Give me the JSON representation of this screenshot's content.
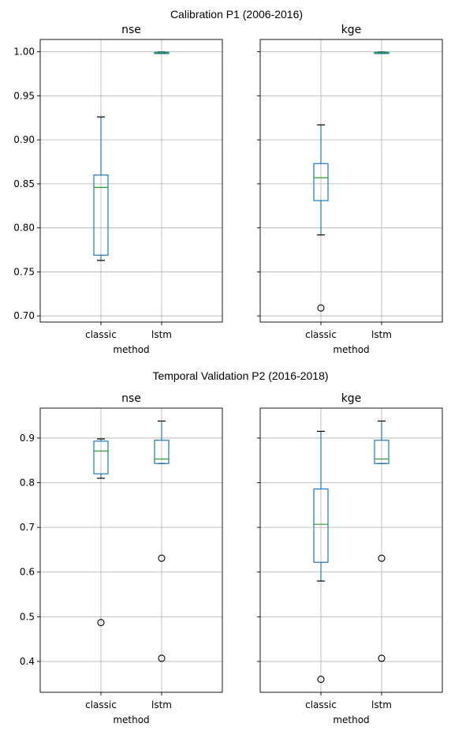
{
  "chart_data": [
    {
      "type": "box",
      "title": "Calibration P1 (2006-2016)",
      "panels": [
        {
          "title": "nse",
          "xlabel": "method",
          "categories": [
            "classic",
            "lstm"
          ],
          "ylim": [
            0.693,
            1.014
          ],
          "yticks": [
            0.7,
            0.75,
            0.8,
            0.85,
            0.9,
            0.95,
            1.0
          ],
          "ytick_labels": [
            "0.70",
            "0.75",
            "0.80",
            "0.85",
            "0.90",
            "0.95",
            "1.00"
          ],
          "show_ytick_labels": true,
          "boxes": [
            {
              "category": "classic",
              "whisker_low": 0.763,
              "q1": 0.769,
              "median": 0.846,
              "q3": 0.86,
              "whisker_high": 0.926,
              "outliers": []
            },
            {
              "category": "lstm",
              "whisker_low": 0.998,
              "q1": 0.998,
              "median": 0.999,
              "q3": 0.9995,
              "whisker_high": 0.9998,
              "outliers": []
            }
          ]
        },
        {
          "title": "kge",
          "xlabel": "method",
          "categories": [
            "classic",
            "lstm"
          ],
          "ylim": [
            0.693,
            1.014
          ],
          "yticks": [
            0.7,
            0.75,
            0.8,
            0.85,
            0.9,
            0.95,
            1.0
          ],
          "ytick_labels": [
            "0.70",
            "0.75",
            "0.80",
            "0.85",
            "0.90",
            "0.95",
            "1.00"
          ],
          "show_ytick_labels": false,
          "boxes": [
            {
              "category": "classic",
              "whisker_low": 0.792,
              "q1": 0.831,
              "median": 0.857,
              "q3": 0.873,
              "whisker_high": 0.917,
              "outliers": [
                0.709
              ]
            },
            {
              "category": "lstm",
              "whisker_low": 0.998,
              "q1": 0.998,
              "median": 0.999,
              "q3": 0.9995,
              "whisker_high": 0.9998,
              "outliers": []
            }
          ]
        }
      ]
    },
    {
      "type": "box",
      "title": "Temporal Validation P2 (2016-2018)",
      "panels": [
        {
          "title": "nse",
          "xlabel": "method",
          "categories": [
            "classic",
            "lstm"
          ],
          "ylim": [
            0.331,
            0.967
          ],
          "yticks": [
            0.4,
            0.5,
            0.6,
            0.7,
            0.8,
            0.9
          ],
          "ytick_labels": [
            "0.4",
            "0.5",
            "0.6",
            "0.7",
            "0.8",
            "0.9"
          ],
          "show_ytick_labels": true,
          "boxes": [
            {
              "category": "classic",
              "whisker_low": 0.81,
              "q1": 0.82,
              "median": 0.871,
              "q3": 0.893,
              "whisker_high": 0.898,
              "outliers": [
                0.487
              ]
            },
            {
              "category": "lstm",
              "whisker_low": 0.843,
              "q1": 0.843,
              "median": 0.853,
              "q3": 0.895,
              "whisker_high": 0.938,
              "outliers": [
                0.631,
                0.407
              ]
            }
          ]
        },
        {
          "title": "kge",
          "xlabel": "method",
          "categories": [
            "classic",
            "lstm"
          ],
          "ylim": [
            0.331,
            0.967
          ],
          "yticks": [
            0.4,
            0.5,
            0.6,
            0.7,
            0.8,
            0.9
          ],
          "ytick_labels": [
            "0.4",
            "0.5",
            "0.6",
            "0.7",
            "0.8",
            "0.9"
          ],
          "show_ytick_labels": false,
          "boxes": [
            {
              "category": "classic",
              "whisker_low": 0.58,
              "q1": 0.622,
              "median": 0.707,
              "q3": 0.786,
              "whisker_high": 0.915,
              "outliers": [
                0.36
              ]
            },
            {
              "category": "lstm",
              "whisker_low": 0.843,
              "q1": 0.843,
              "median": 0.853,
              "q3": 0.895,
              "whisker_high": 0.938,
              "outliers": [
                0.631,
                0.407
              ]
            }
          ]
        }
      ]
    }
  ],
  "colors": {
    "box": "#1f77b4",
    "median": "#2ca02c",
    "grid": "#b0b0b0",
    "axis": "#000000",
    "outlier": "#000000"
  },
  "grid": true
}
